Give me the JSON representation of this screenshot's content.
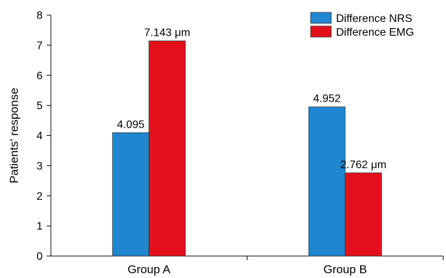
{
  "chart_data": {
    "type": "bar",
    "title": "",
    "xlabel": "",
    "ylabel": "Patients' response",
    "ylim": [
      0,
      8
    ],
    "yticks": [
      "0",
      "1",
      "2",
      "3",
      "4",
      "5",
      "6",
      "7",
      "8"
    ],
    "categories": [
      "Group A",
      "Group B"
    ],
    "series": [
      {
        "name": "Difference NRS",
        "values": [
          4.095,
          4.952
        ],
        "labels": [
          "4.095",
          "4.952"
        ],
        "color": "#1f86d1"
      },
      {
        "name": "Difference EMG",
        "values": [
          7.143,
          2.762
        ],
        "labels": [
          "7.143 μm",
          "2.762 μm"
        ],
        "color": "#e3101c"
      }
    ],
    "legend_position": "top-right",
    "grid": false
  }
}
